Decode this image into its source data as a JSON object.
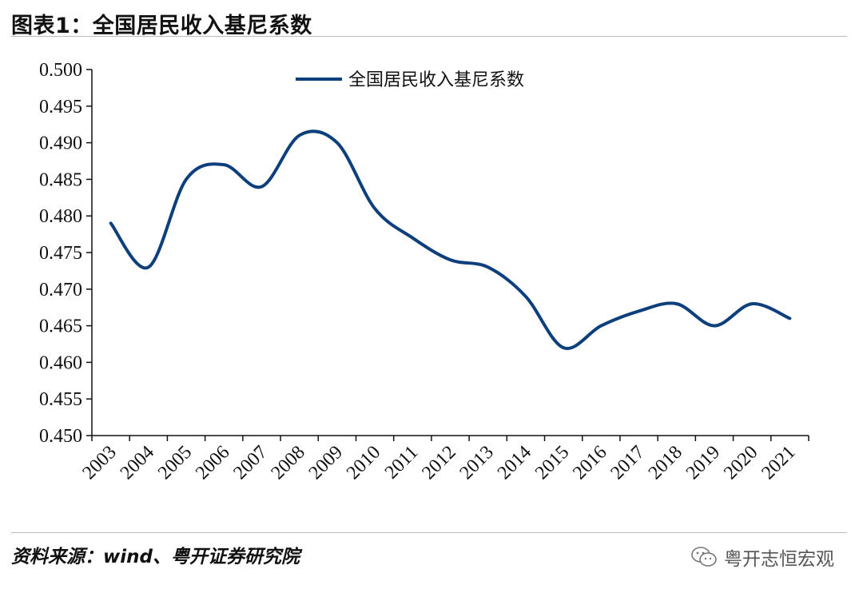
{
  "header": {
    "title": "图表1：全国居民收入基尼系数"
  },
  "footer": {
    "source": "资料来源：wind、粤开证券研究院",
    "watermark": "粤开志恒宏观"
  },
  "colors": {
    "series": "#0d3f7d",
    "axis": "#111111",
    "rule": "#bdbdbd"
  },
  "chart_data": {
    "type": "line",
    "title": "",
    "xlabel": "",
    "ylabel": "",
    "ylim": [
      0.45,
      0.5
    ],
    "ytick_labels": [
      "0.450",
      "0.455",
      "0.460",
      "0.465",
      "0.470",
      "0.475",
      "0.480",
      "0.485",
      "0.490",
      "0.495",
      "0.500"
    ],
    "categories": [
      "2003",
      "2004",
      "2005",
      "2006",
      "2007",
      "2008",
      "2009",
      "2010",
      "2011",
      "2012",
      "2013",
      "2014",
      "2015",
      "2016",
      "2017",
      "2018",
      "2019",
      "2020",
      "2021"
    ],
    "series": [
      {
        "name": "全国居民收入基尼系数",
        "values": [
          0.479,
          0.473,
          0.485,
          0.487,
          0.484,
          0.491,
          0.49,
          0.481,
          0.477,
          0.474,
          0.473,
          0.469,
          0.462,
          0.465,
          0.467,
          0.468,
          0.465,
          0.468,
          0.466
        ]
      }
    ],
    "grid": false,
    "legend_position": "top-center",
    "smooth": true
  }
}
